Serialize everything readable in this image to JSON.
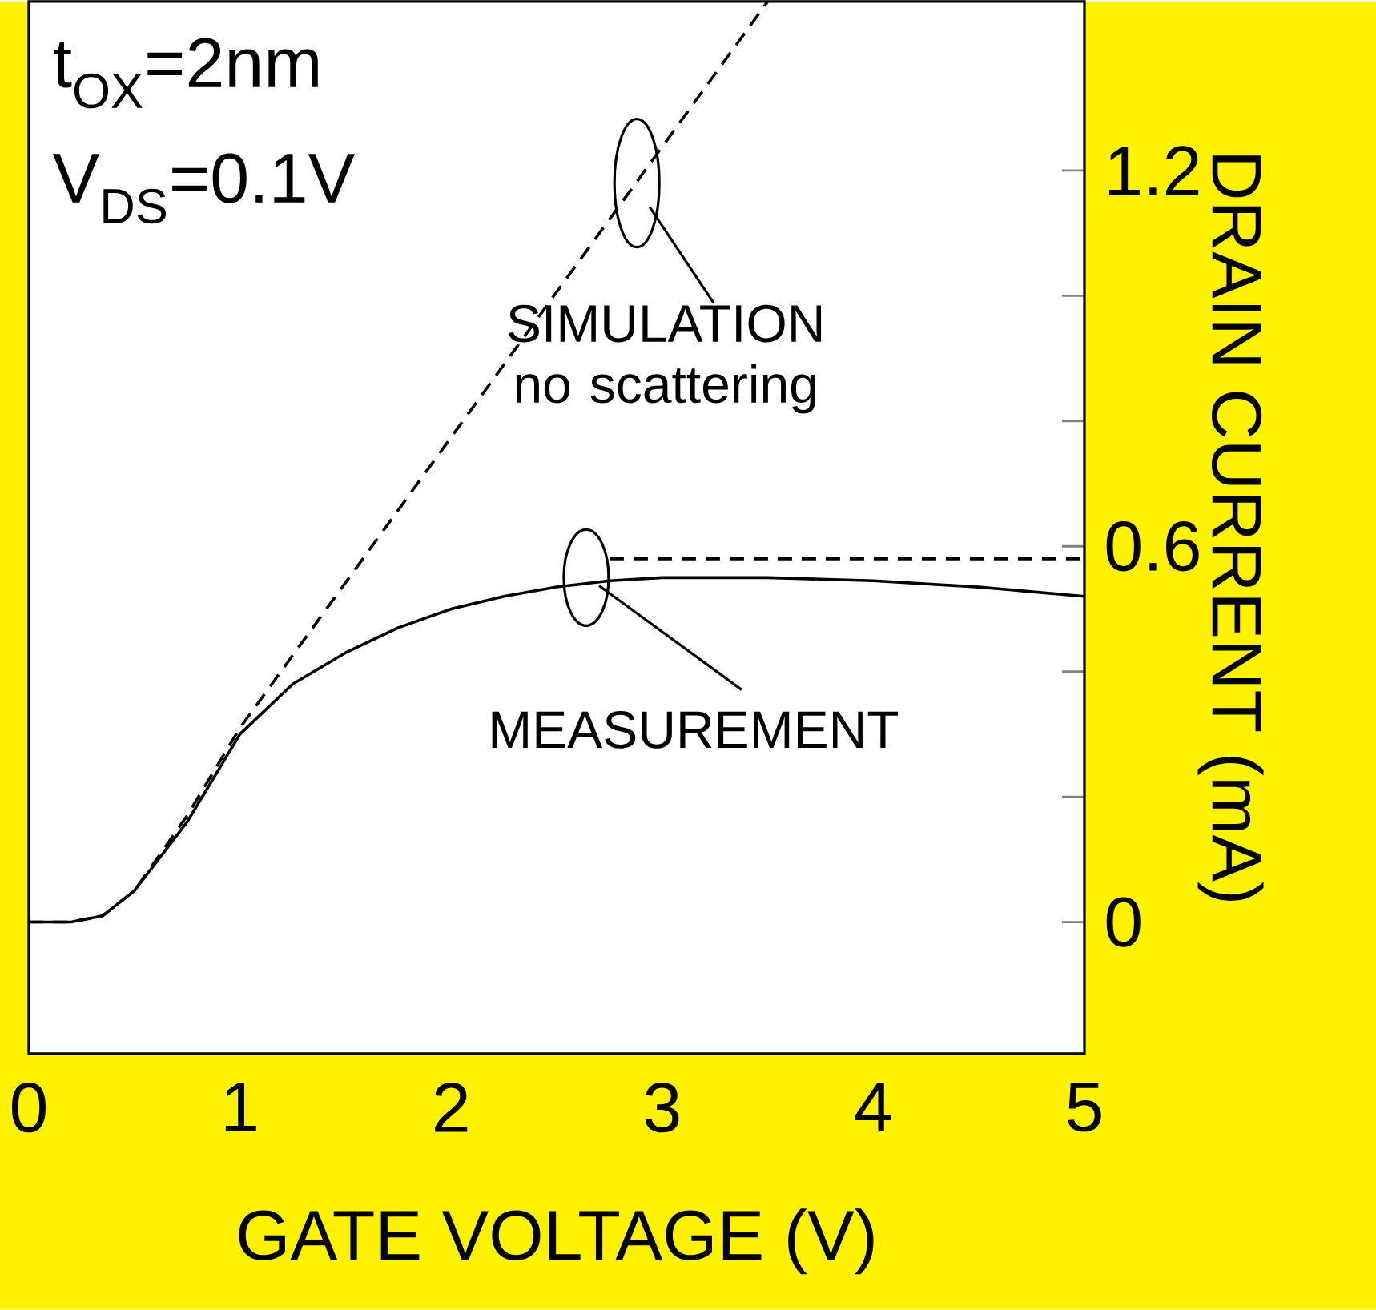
{
  "chart_data": {
    "type": "line",
    "xlabel": "GATE VOLTAGE (V)",
    "ylabel": "DRAIN CURRENT (mA)",
    "xlim": [
      0,
      5
    ],
    "ylim": [
      -0.21,
      1.47
    ],
    "xticks": [
      0,
      1,
      2,
      3,
      4,
      5
    ],
    "yticks": [
      0,
      {
        "value": 0.2,
        "label": null
      },
      {
        "value": 0.4,
        "label": null
      },
      0.6,
      {
        "value": 0.8,
        "label": null
      },
      {
        "value": 1.0,
        "label": null
      },
      1.2
    ],
    "marker": "none",
    "series": [
      {
        "color": "#000000",
        "line_style": "solid",
        "x": [
          0,
          0.2,
          0.35,
          0.5,
          0.75,
          1,
          1.25,
          1.5,
          1.75,
          2,
          2.25,
          2.5,
          2.75,
          3,
          3.5,
          4,
          4.5,
          5
        ],
        "values": [
          0,
          0,
          0.01,
          0.05,
          0.16,
          0.3,
          0.38,
          0.43,
          0.47,
          0.5,
          0.52,
          0.535,
          0.545,
          0.55,
          0.55,
          0.545,
          0.535,
          0.52
        ]
      },
      {
        "color": "#000000",
        "line_style": "dashed",
        "x": [
          0,
          0.2,
          0.35,
          0.5,
          0.75,
          1,
          3.5
        ],
        "values": [
          0,
          0,
          0.01,
          0.05,
          0.17,
          0.31,
          1.47
        ]
      },
      {
        "color": "#000000",
        "line_style": "dashed",
        "x": [
          2.75,
          5
        ],
        "values": [
          0.58,
          0.58
        ]
      }
    ],
    "annotations": [
      "t$_{OX}$=2nm",
      "V$_{DS}$=0.1V",
      {
        "text": "SIMULATION no scattering",
        "x": 2.88,
        "y": 1.18
      },
      {
        "text": "MEASUREMENT",
        "x": 2.64,
        "y": 0.55
      }
    ]
  }
}
